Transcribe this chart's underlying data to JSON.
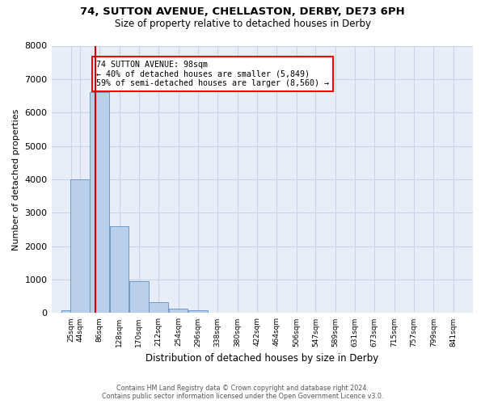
{
  "title_line1": "74, SUTTON AVENUE, CHELLASTON, DERBY, DE73 6PH",
  "title_line2": "Size of property relative to detached houses in Derby",
  "xlabel": "Distribution of detached houses by size in Derby",
  "ylabel": "Number of detached properties",
  "annotation_line1": "74 SUTTON AVENUE: 98sqm",
  "annotation_line2": "← 40% of detached houses are smaller (5,849)",
  "annotation_line3": "59% of semi-detached houses are larger (8,560) →",
  "bin_labels": [
    "25sqm",
    "44sqm",
    "86sqm",
    "128sqm",
    "170sqm",
    "212sqm",
    "254sqm",
    "296sqm",
    "338sqm",
    "380sqm",
    "422sqm",
    "464sqm",
    "506sqm",
    "547sqm",
    "589sqm",
    "631sqm",
    "673sqm",
    "715sqm",
    "757sqm",
    "799sqm",
    "841sqm"
  ],
  "bin_left_edges": [
    25,
    44,
    86,
    128,
    170,
    212,
    254,
    296,
    338,
    380,
    422,
    464,
    506,
    547,
    589,
    631,
    673,
    715,
    757,
    799,
    841
  ],
  "bin_width": 42,
  "bar_heights": [
    75,
    4000,
    6600,
    2600,
    960,
    320,
    125,
    75,
    0,
    0,
    0,
    0,
    0,
    0,
    0,
    0,
    0,
    0,
    0,
    0,
    0
  ],
  "bar_color": "#b8d0ea",
  "bar_edgecolor": "#6090c0",
  "vline_x": 98,
  "vline_color": "#cc0000",
  "grid_color": "#c8d4e8",
  "bg_color": "#e8eef8",
  "ylim": [
    0,
    8000
  ],
  "yticks": [
    0,
    1000,
    2000,
    3000,
    4000,
    5000,
    6000,
    7000,
    8000
  ],
  "footer_line1": "Contains HM Land Registry data © Crown copyright and database right 2024.",
  "footer_line2": "Contains public sector information licensed under the Open Government Licence v3.0."
}
